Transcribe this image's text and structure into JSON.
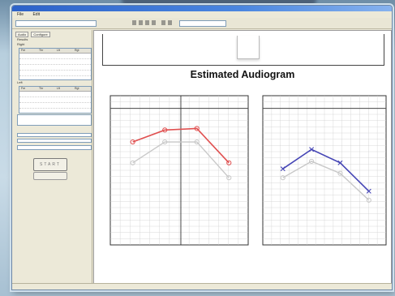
{
  "window": {
    "title": "",
    "menu": [
      "File",
      "Edit"
    ]
  },
  "toolbar": {
    "profile_select": "",
    "view_select": ""
  },
  "left_panel": {
    "tabs": [
      "Audio",
      "Configure"
    ],
    "sections": [
      "Results",
      "Right",
      "Left"
    ],
    "table_headers": [
      "Fre",
      "Thr",
      "Lft",
      "Rgt"
    ],
    "run_label": "START",
    "info_box": "",
    "options_label": ""
  },
  "report": {
    "title": "Estimated Audiogram",
    "top_tab_label": "",
    "left_legend": [
      "",
      ""
    ],
    "right_legend": [
      "",
      ""
    ]
  },
  "status": {
    "text": ""
  },
  "colors": {
    "right_ear": "#e05050",
    "left_ear": "#4545b5",
    "reference": "#c8c8c8",
    "grid": "#cfcfcf"
  },
  "chart_data": [
    {
      "type": "line",
      "title": "",
      "x": [
        1,
        2,
        3,
        4
      ],
      "ylim": [
        0,
        10
      ],
      "series": [
        {
          "values": [
            6.9,
            7.7,
            7.8,
            5.5
          ]
        },
        {
          "values": [
            5.5,
            6.9,
            6.9,
            4.5
          ]
        }
      ]
    },
    {
      "type": "line",
      "title": "",
      "x": [
        1,
        2,
        3,
        4
      ],
      "ylim": [
        0,
        10
      ],
      "series": [
        {
          "values": [
            5.1,
            6.4,
            5.5,
            3.6
          ]
        },
        {
          "values": [
            4.5,
            5.6,
            4.8,
            3.0
          ]
        }
      ]
    }
  ]
}
